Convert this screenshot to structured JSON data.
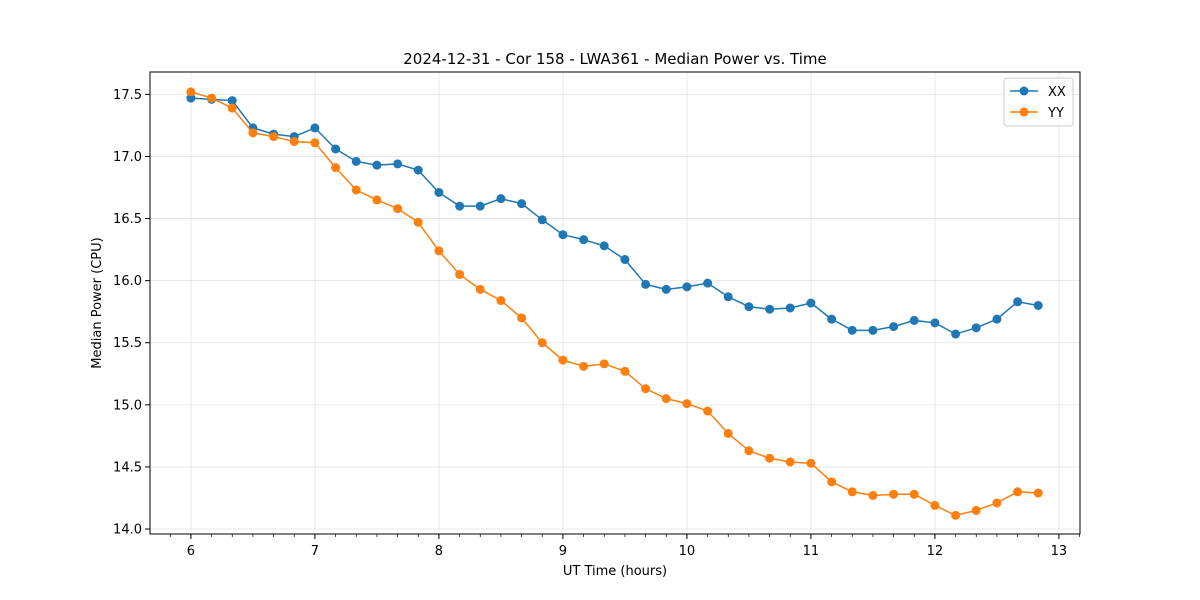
{
  "chart_data": {
    "type": "line",
    "title": "2024-12-31 - Cor 158 - LWA361 - Median Power vs. Time",
    "xlabel": "UT Time (hours)",
    "ylabel": "Median Power (CPU)",
    "xlim": [
      5.67,
      13.17
    ],
    "ylim": [
      13.96,
      17.68
    ],
    "xticks": [
      6,
      7,
      8,
      9,
      10,
      11,
      12,
      13
    ],
    "xtick_labels": [
      "6",
      "7",
      "8",
      "9",
      "10",
      "11",
      "12",
      "13"
    ],
    "yticks": [
      14.0,
      14.5,
      15.0,
      15.5,
      16.0,
      16.5,
      17.0,
      17.5
    ],
    "ytick_labels": [
      "14.0",
      "14.5",
      "15.0",
      "15.5",
      "16.0",
      "16.5",
      "17.0",
      "17.5"
    ],
    "grid": true,
    "legend_position": "top-right",
    "x": [
      6.0,
      6.167,
      6.333,
      6.5,
      6.667,
      6.833,
      7.0,
      7.167,
      7.333,
      7.5,
      7.667,
      7.833,
      8.0,
      8.167,
      8.333,
      8.5,
      8.667,
      8.833,
      9.0,
      9.167,
      9.333,
      9.5,
      9.667,
      9.833,
      10.0,
      10.167,
      10.333,
      10.5,
      10.667,
      10.833,
      11.0,
      11.167,
      11.333,
      11.5,
      11.667,
      11.833,
      12.0,
      12.167,
      12.333,
      12.5,
      12.667,
      12.833
    ],
    "series": [
      {
        "name": "XX",
        "color": "#1f77b4",
        "values": [
          17.47,
          17.46,
          17.45,
          17.23,
          17.18,
          17.16,
          17.23,
          17.06,
          16.96,
          16.93,
          16.94,
          16.89,
          16.71,
          16.6,
          16.6,
          16.66,
          16.62,
          16.49,
          16.37,
          16.33,
          16.28,
          16.17,
          15.97,
          15.93,
          15.95,
          15.98,
          15.87,
          15.79,
          15.77,
          15.78,
          15.82,
          15.69,
          15.6,
          15.6,
          15.63,
          15.68,
          15.66,
          15.57,
          15.62,
          15.69,
          15.83,
          15.8
        ]
      },
      {
        "name": "YY",
        "color": "#ff7f0e",
        "values": [
          17.52,
          17.47,
          17.39,
          17.19,
          17.16,
          17.12,
          17.11,
          16.91,
          16.73,
          16.65,
          16.58,
          16.47,
          16.24,
          16.05,
          15.93,
          15.84,
          15.7,
          15.5,
          15.36,
          15.31,
          15.33,
          15.27,
          15.13,
          15.05,
          15.01,
          14.95,
          14.77,
          14.63,
          14.57,
          14.54,
          14.53,
          14.38,
          14.3,
          14.27,
          14.28,
          14.28,
          14.19,
          14.11,
          14.15,
          14.21,
          14.3,
          14.29
        ]
      }
    ]
  }
}
